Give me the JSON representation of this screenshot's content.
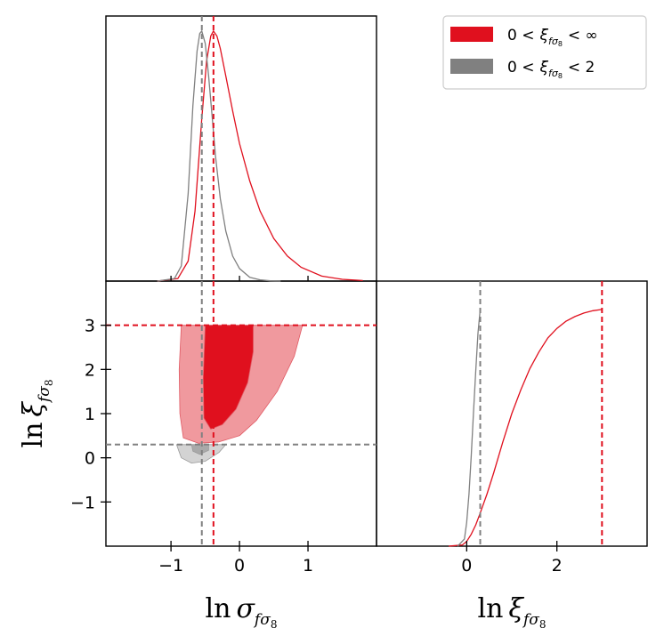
{
  "chart_data": [
    {
      "type": "line",
      "panel": "marginal-ln-sigma",
      "title": "",
      "xlabel": "",
      "ylabel": "",
      "xlim": [
        -1.95,
        2.0
      ],
      "x_ticks": [
        -1,
        0,
        1
      ],
      "x_tick_labels": [
        "−1",
        "0",
        "1"
      ],
      "series": [
        {
          "name": "0 < ξ < ∞",
          "color": "#e0101e",
          "x": [
            -1.2,
            -0.9,
            -0.75,
            -0.65,
            -0.55,
            -0.48,
            -0.42,
            -0.38,
            -0.33,
            -0.28,
            -0.2,
            -0.1,
            0.0,
            0.15,
            0.3,
            0.5,
            0.7,
            0.9,
            1.2,
            1.5,
            1.8
          ],
          "y": [
            0.0,
            0.01,
            0.08,
            0.28,
            0.65,
            0.88,
            0.98,
            1.0,
            0.98,
            0.93,
            0.82,
            0.68,
            0.55,
            0.4,
            0.28,
            0.17,
            0.1,
            0.055,
            0.02,
            0.007,
            0.002
          ]
        },
        {
          "name": "0 < ξ < 2",
          "color": "#808080",
          "x": [
            -1.2,
            -0.95,
            -0.85,
            -0.75,
            -0.68,
            -0.62,
            -0.58,
            -0.55,
            -0.5,
            -0.45,
            -0.4,
            -0.35,
            -0.28,
            -0.2,
            -0.1,
            0.0,
            0.15,
            0.3,
            0.45,
            0.6
          ],
          "y": [
            0.0,
            0.01,
            0.06,
            0.35,
            0.7,
            0.92,
            0.99,
            1.0,
            0.95,
            0.82,
            0.66,
            0.5,
            0.33,
            0.2,
            0.1,
            0.05,
            0.015,
            0.005,
            0.001,
            0.0
          ]
        }
      ],
      "reference_lines": [
        {
          "axis": "x",
          "value": -0.38,
          "color": "#e0101e",
          "style": "dashed"
        },
        {
          "axis": "x",
          "value": -0.55,
          "color": "#808080",
          "style": "dashed"
        }
      ]
    },
    {
      "type": "contour",
      "panel": "joint",
      "title": "",
      "xlabel": "ln σ_fσ8",
      "ylabel": "ln ξ_fσ8",
      "xlabel_main": "ln",
      "xlabel_symbol": "σ",
      "xlabel_sub": "f",
      "xlabel_sub_sigma": "σ",
      "xlabel_sub_8": "8",
      "ylabel_main": "ln",
      "ylabel_symbol": "ξ",
      "xlim": [
        -1.95,
        2.0
      ],
      "ylim": [
        -2.0,
        4.0
      ],
      "x_ticks": [
        -1,
        0,
        1
      ],
      "x_tick_labels": [
        "−1",
        "0",
        "1"
      ],
      "y_ticks": [
        -1,
        0,
        1,
        2,
        3
      ],
      "y_tick_labels": [
        "−1",
        "0",
        "1",
        "2",
        "3"
      ],
      "contours": [
        {
          "name": "0 < ξ < ∞ (95%)",
          "color": "#f0999e",
          "points": [
            [
              -0.85,
              3.0
            ],
            [
              0.92,
              3.0
            ],
            [
              0.8,
              2.3
            ],
            [
              0.55,
              1.5
            ],
            [
              0.25,
              0.85
            ],
            [
              0.0,
              0.5
            ],
            [
              -0.3,
              0.36
            ],
            [
              -0.6,
              0.33
            ],
            [
              -0.82,
              0.45
            ],
            [
              -0.87,
              1.0
            ],
            [
              -0.88,
              2.0
            ]
          ]
        },
        {
          "name": "0 < ξ < ∞ (68%)",
          "color": "#e0101e",
          "points": [
            [
              -0.5,
              3.0
            ],
            [
              0.2,
              3.0
            ],
            [
              0.2,
              2.4
            ],
            [
              0.12,
              1.7
            ],
            [
              -0.05,
              1.1
            ],
            [
              -0.25,
              0.75
            ],
            [
              -0.42,
              0.65
            ],
            [
              -0.52,
              0.9
            ],
            [
              -0.53,
              1.8
            ]
          ]
        },
        {
          "name": "0 < ξ < 2 (95%)",
          "color": "#d3d3d3",
          "points": [
            [
              -0.92,
              0.3
            ],
            [
              -0.4,
              0.3
            ],
            [
              -0.2,
              0.3
            ],
            [
              -0.3,
              0.12
            ],
            [
              -0.5,
              -0.08
            ],
            [
              -0.7,
              -0.12
            ],
            [
              -0.85,
              0.0
            ]
          ]
        },
        {
          "name": "0 < ξ < 2 (68%)",
          "color": "#a9a9a9",
          "points": [
            [
              -0.7,
              0.3
            ],
            [
              -0.45,
              0.3
            ],
            [
              -0.45,
              0.17
            ],
            [
              -0.58,
              0.08
            ],
            [
              -0.68,
              0.15
            ]
          ]
        }
      ],
      "reference_lines": [
        {
          "axis": "y",
          "value": 3.0,
          "color": "#e0101e",
          "style": "dashed"
        },
        {
          "axis": "y",
          "value": 0.3,
          "color": "#808080",
          "style": "dashed"
        },
        {
          "axis": "x",
          "value": -0.38,
          "color": "#e0101e",
          "style": "dashed"
        },
        {
          "axis": "x",
          "value": -0.55,
          "color": "#808080",
          "style": "dashed"
        }
      ]
    },
    {
      "type": "line",
      "panel": "marginal-ln-xi",
      "title": "",
      "xlabel": "ln ξ_fσ8",
      "xlabel_main": "ln",
      "xlabel_symbol": "ξ",
      "xlim": [
        -2.0,
        4.0
      ],
      "x_ticks": [
        0,
        2
      ],
      "x_tick_labels": [
        "0",
        "2"
      ],
      "series": [
        {
          "name": "0 < ξ < ∞",
          "color": "#e0101e",
          "x": [
            -0.4,
            -0.1,
            0.0,
            0.1,
            0.2,
            0.3,
            0.45,
            0.6,
            0.8,
            1.0,
            1.2,
            1.4,
            1.6,
            1.8,
            2.0,
            2.2,
            2.4,
            2.6,
            2.8,
            3.0
          ],
          "y": [
            0.0,
            0.005,
            0.02,
            0.05,
            0.09,
            0.14,
            0.22,
            0.31,
            0.44,
            0.56,
            0.66,
            0.75,
            0.82,
            0.88,
            0.92,
            0.95,
            0.97,
            0.985,
            0.995,
            1.0
          ]
        },
        {
          "name": "0 < ξ < 2",
          "color": "#808080",
          "x": [
            -0.2,
            -0.05,
            0.0,
            0.05,
            0.1,
            0.15,
            0.2,
            0.25,
            0.3
          ],
          "y": [
            0.0,
            0.03,
            0.1,
            0.22,
            0.38,
            0.56,
            0.74,
            0.9,
            1.0
          ]
        }
      ],
      "reference_lines": [
        {
          "axis": "x",
          "value": 3.0,
          "color": "#e0101e",
          "style": "dashed"
        },
        {
          "axis": "x",
          "value": 0.3,
          "color": "#808080",
          "style": "dashed"
        }
      ]
    }
  ],
  "legend": {
    "entries": [
      {
        "label_prefix": "0 <",
        "symbol": "ξ",
        "sub_f": "f",
        "sub_sigma": "σ",
        "sub_8": "8",
        "label_suffix": "< ∞",
        "color": "#e0101e"
      },
      {
        "label_prefix": "0 <",
        "symbol": "ξ",
        "sub_f": "f",
        "sub_sigma": "σ",
        "sub_8": "8",
        "label_suffix": "< 2",
        "color": "#808080"
      }
    ]
  }
}
